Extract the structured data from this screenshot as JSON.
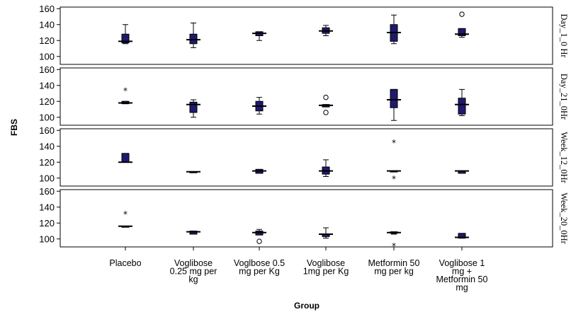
{
  "chart_data": {
    "type": "boxplot",
    "xlabel": "Group",
    "ylabel": "FBS",
    "categories": [
      [
        "Placebo"
      ],
      [
        "Voglibose",
        "0.25 mg per",
        "kg"
      ],
      [
        "Voglbose 0.5",
        "mg per Kg"
      ],
      [
        "Voglibose",
        "1mg per Kg"
      ],
      [
        "Metformin 50",
        "mg per kg"
      ],
      [
        "Voglibose 1",
        "mg +",
        "Metformin 50",
        "mg"
      ]
    ],
    "panels": [
      {
        "label": "Day_1_0 Hr",
        "ylim": [
          90,
          162
        ],
        "yticks": [
          100,
          120,
          140,
          160
        ],
        "boxes": [
          {
            "min": 116,
            "q1": 117,
            "median": 119,
            "q3": 128,
            "max": 140,
            "outliers": []
          },
          {
            "min": 111,
            "q1": 116,
            "median": 121,
            "q3": 128,
            "max": 142,
            "outliers": []
          },
          {
            "min": 120,
            "q1": 126,
            "median": 129,
            "q3": 131,
            "max": 131,
            "outliers": []
          },
          {
            "min": 126,
            "q1": 129,
            "median": 132,
            "q3": 136,
            "max": 139,
            "outliers": []
          },
          {
            "min": 116,
            "q1": 119,
            "median": 130,
            "q3": 140,
            "max": 152,
            "outliers": []
          },
          {
            "min": 124,
            "q1": 126,
            "median": 128,
            "q3": 135,
            "max": 135,
            "outliers": [
              {
                "value": 153,
                "symbol": "circle"
              }
            ]
          }
        ]
      },
      {
        "label": "Day_21_0Hr",
        "ylim": [
          90,
          162
        ],
        "yticks": [
          100,
          120,
          140,
          160
        ],
        "boxes": [
          {
            "min": 117,
            "q1": 117,
            "median": 118,
            "q3": 120,
            "max": 120,
            "outliers": [
              {
                "value": 134,
                "symbol": "star"
              }
            ]
          },
          {
            "min": 100,
            "q1": 106,
            "median": 116,
            "q3": 119,
            "max": 122,
            "outliers": []
          },
          {
            "min": 104,
            "q1": 108,
            "median": 114,
            "q3": 120,
            "max": 125,
            "outliers": []
          },
          {
            "min": 113,
            "q1": 113,
            "median": 115,
            "q3": 116,
            "max": 116,
            "outliers": [
              {
                "value": 106,
                "symbol": "circle"
              },
              {
                "value": 125,
                "symbol": "circle"
              }
            ]
          },
          {
            "min": 96,
            "q1": 112,
            "median": 122,
            "q3": 135,
            "max": 135,
            "outliers": []
          },
          {
            "min": 102,
            "q1": 104,
            "median": 116,
            "q3": 124,
            "max": 135,
            "outliers": []
          }
        ]
      },
      {
        "label": "Week_12_0Hr",
        "ylim": [
          90,
          162
        ],
        "yticks": [
          100,
          120,
          140,
          160
        ],
        "boxes": [
          {
            "min": 120,
            "q1": 120,
            "median": 120,
            "q3": 131,
            "max": 131,
            "outliers": []
          },
          {
            "min": 108,
            "q1": 108,
            "median": 108,
            "q3": 108,
            "max": 108,
            "outliers": []
          },
          {
            "min": 106,
            "q1": 106,
            "median": 109,
            "q3": 111,
            "max": 111,
            "outliers": []
          },
          {
            "min": 102,
            "q1": 105,
            "median": 109,
            "q3": 114,
            "max": 123,
            "outliers": []
          },
          {
            "min": 109,
            "q1": 109,
            "median": 109,
            "q3": 109,
            "max": 109,
            "outliers": [
              {
                "value": 100,
                "symbol": "star"
              },
              {
                "value": 145,
                "symbol": "star"
              }
            ]
          },
          {
            "min": 106,
            "q1": 106,
            "median": 109,
            "q3": 109,
            "max": 109,
            "outliers": []
          }
        ]
      },
      {
        "label": "Week_20_0Hr",
        "ylim": [
          90,
          162
        ],
        "yticks": [
          100,
          120,
          140,
          160
        ],
        "boxes": [
          {
            "min": 115,
            "q1": 115,
            "median": 116,
            "q3": 116,
            "max": 116,
            "outliers": [
              {
                "value": 132,
                "symbol": "star"
              }
            ]
          },
          {
            "min": 106,
            "q1": 106,
            "median": 109,
            "q3": 110,
            "max": 110,
            "outliers": []
          },
          {
            "min": 105,
            "q1": 105,
            "median": 108,
            "q3": 110,
            "max": 112,
            "outliers": [
              {
                "value": 97,
                "symbol": "circle"
              }
            ]
          },
          {
            "min": 101,
            "q1": 103,
            "median": 106,
            "q3": 106,
            "max": 114,
            "outliers": []
          },
          {
            "min": 106,
            "q1": 107,
            "median": 108,
            "q3": 109,
            "max": 109,
            "outliers": [
              {
                "value": 92,
                "symbol": "star"
              }
            ]
          },
          {
            "min": 101,
            "q1": 101,
            "median": 102,
            "q3": 107,
            "max": 107,
            "outliers": []
          }
        ]
      }
    ],
    "colors": {
      "box_fill": "#1f1a6e",
      "box_stroke": "#000000",
      "median": "#000000",
      "frame": "#000000"
    }
  }
}
